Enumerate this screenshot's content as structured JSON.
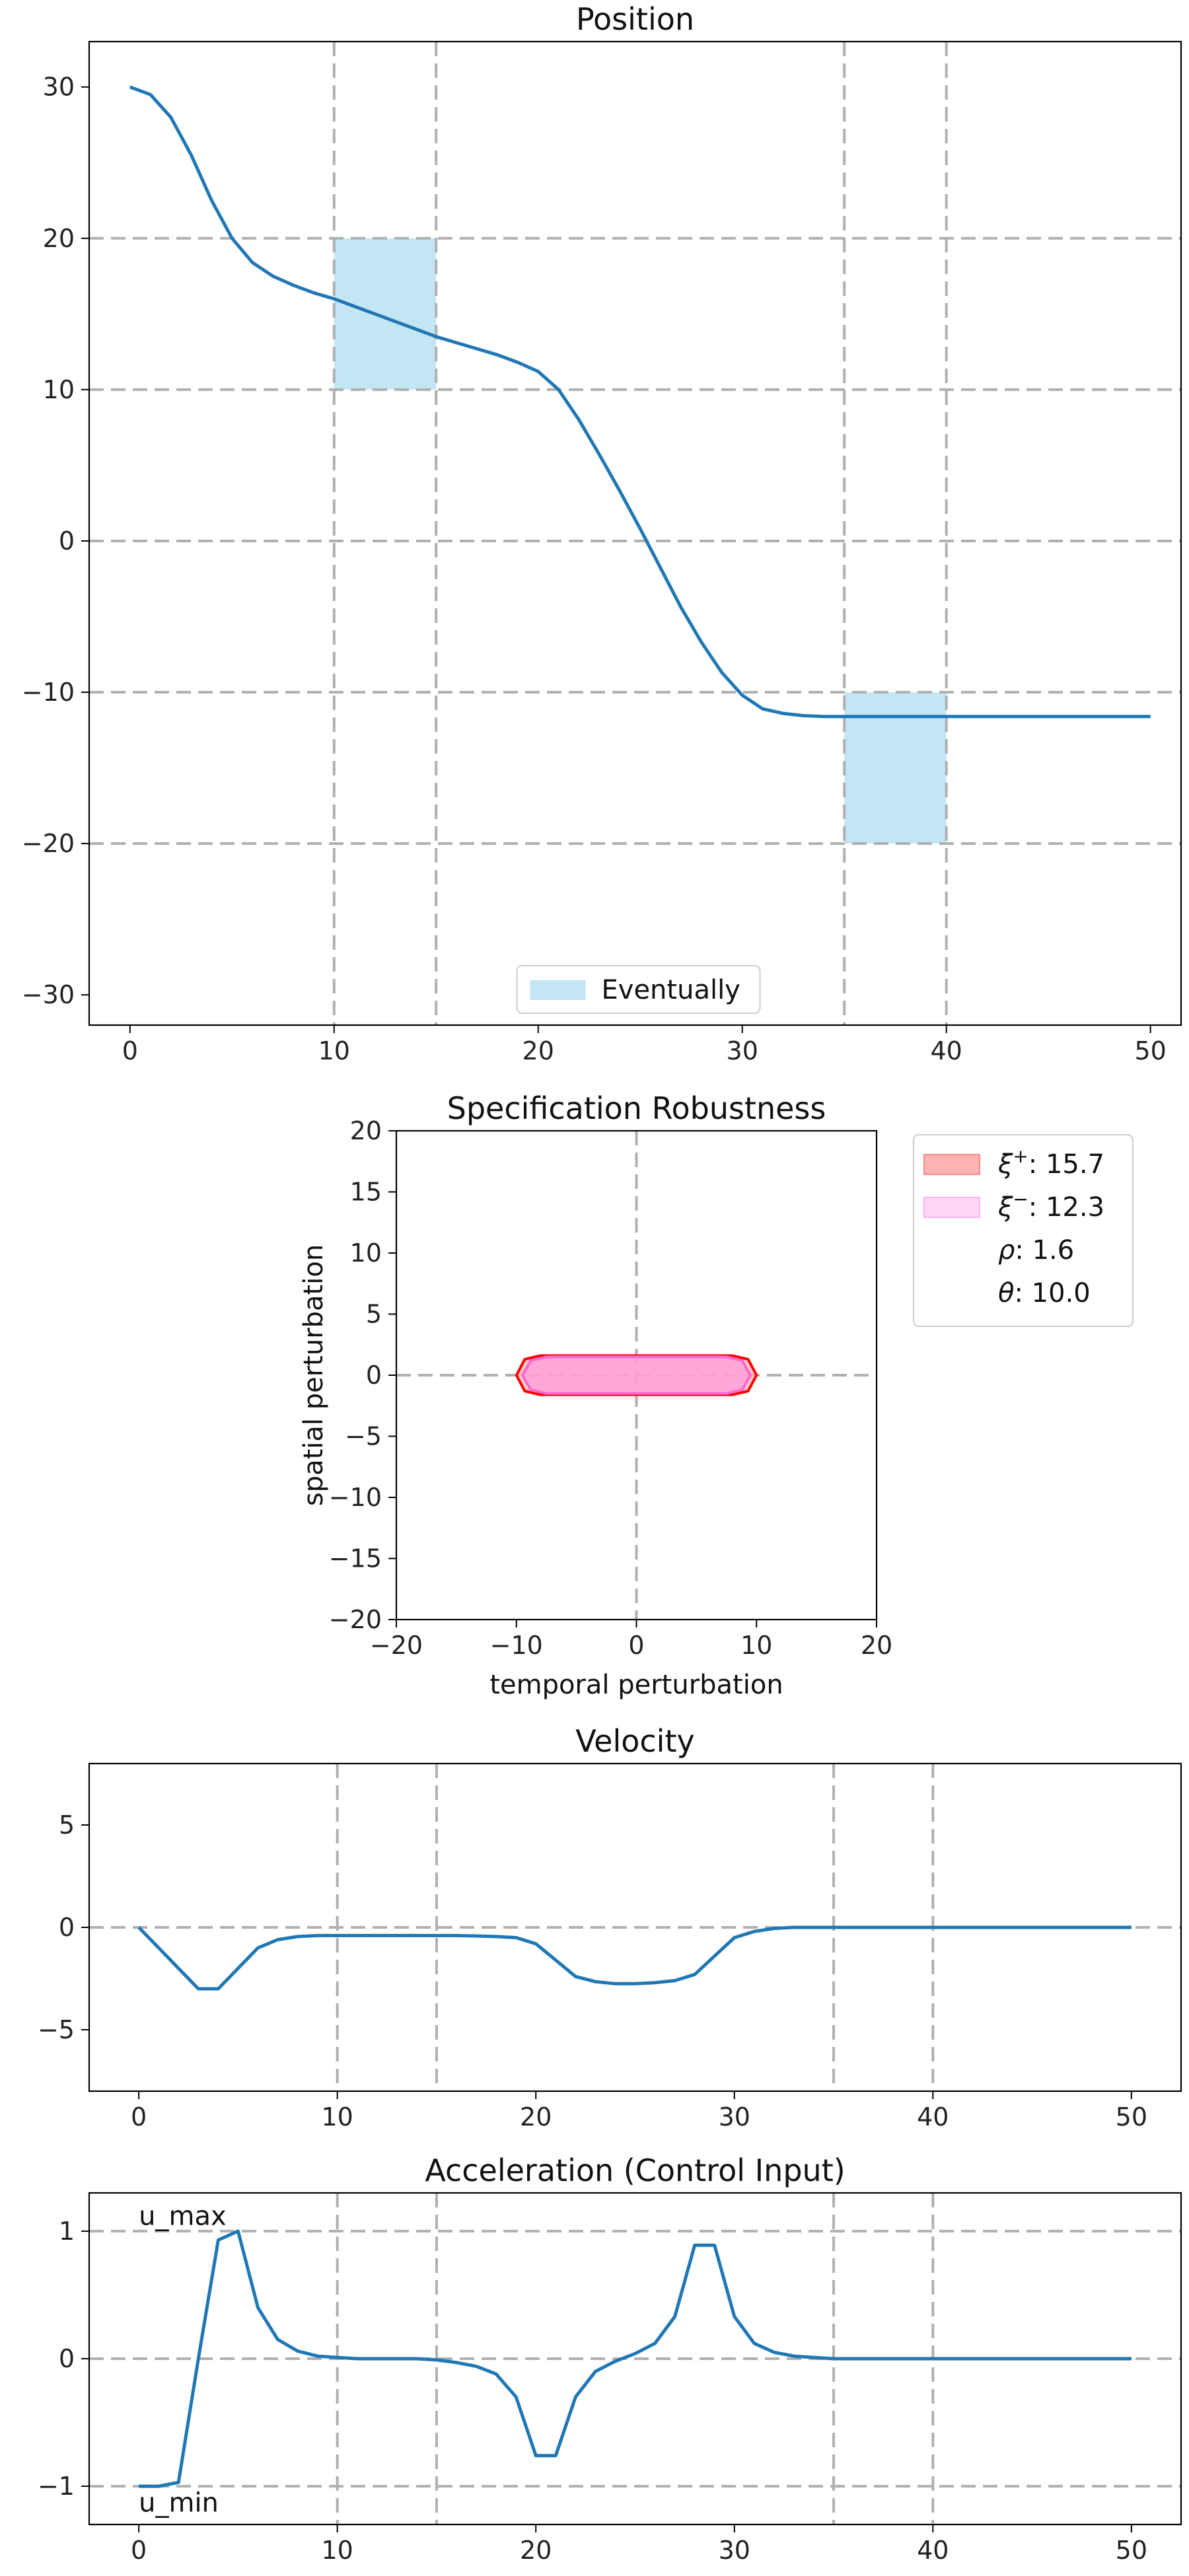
{
  "chart_data": [
    {
      "type": "line",
      "title": "Position",
      "xlim": [
        -2,
        51.5
      ],
      "ylim": [
        -32,
        33
      ],
      "xticks": [
        0,
        10,
        20,
        30,
        40,
        50
      ],
      "yticks": [
        -30,
        -20,
        -10,
        0,
        10,
        20,
        30
      ],
      "xtick_labels": [
        "0",
        "10",
        "20",
        "30",
        "40",
        "50"
      ],
      "ytick_labels": [
        "−30",
        "−20",
        "−10",
        "0",
        "10",
        "20",
        "30"
      ],
      "grid_y": [
        -20,
        -10,
        0,
        10,
        20
      ],
      "vlines": [
        10,
        15,
        35,
        40
      ],
      "regions": [
        {
          "x": [
            10,
            15
          ],
          "y": [
            10,
            20
          ],
          "color": "#87ceeb"
        },
        {
          "x": [
            35,
            40
          ],
          "y": [
            -20,
            -10
          ],
          "color": "#87ceeb"
        }
      ],
      "legend": {
        "placement": "lower-center",
        "entries": [
          {
            "label": "Eventually",
            "color": "#87ceeb"
          }
        ]
      },
      "series": [
        {
          "color": "#1f77b4",
          "x": [
            0,
            1,
            2,
            3,
            4,
            5,
            6,
            7,
            8,
            9,
            10,
            11,
            12,
            13,
            14,
            15,
            16,
            17,
            18,
            19,
            20,
            21,
            22,
            23,
            24,
            25,
            26,
            27,
            28,
            29,
            30,
            31,
            32,
            33,
            34,
            35,
            36,
            37,
            38,
            39,
            40,
            41,
            42,
            43,
            44,
            45,
            46,
            47,
            48,
            49,
            50
          ],
          "y": [
            30,
            29.5,
            28,
            25.5,
            22.5,
            20,
            18.4,
            17.5,
            16.9,
            16.4,
            16,
            15.5,
            15,
            14.5,
            14,
            13.5,
            13.1,
            12.7,
            12.3,
            11.8,
            11.2,
            10,
            8,
            5.7,
            3.3,
            0.8,
            -1.8,
            -4.4,
            -6.7,
            -8.7,
            -10.2,
            -11.1,
            -11.4,
            -11.55,
            -11.6,
            -11.6,
            -11.6,
            -11.6,
            -11.6,
            -11.6,
            -11.6,
            -11.6,
            -11.6,
            -11.6,
            -11.6,
            -11.6,
            -11.6,
            -11.6,
            -11.6,
            -11.6,
            -11.6
          ]
        }
      ]
    },
    {
      "type": "area",
      "title": "Specification Robustness",
      "xlabel": "temporal perturbation",
      "ylabel": "spatial perturbation",
      "xlim": [
        -20,
        20
      ],
      "ylim": [
        -20,
        20
      ],
      "xticks": [
        -20,
        -10,
        0,
        10,
        20
      ],
      "yticks": [
        -20,
        -15,
        -10,
        -5,
        0,
        5,
        10,
        15,
        20
      ],
      "xtick_labels": [
        "−20",
        "−10",
        "0",
        "10",
        "20"
      ],
      "ytick_labels": [
        "−20",
        "−15",
        "−10",
        "−5",
        "0",
        "5",
        "10",
        "15",
        "20"
      ],
      "polygons": [
        {
          "name": "xi_plus",
          "fill": "#ffb3b3",
          "edge": "#ff0000",
          "points": [
            [
              -10,
              0
            ],
            [
              -9.3,
              1.3
            ],
            [
              -8,
              1.6
            ],
            [
              8,
              1.6
            ],
            [
              9.3,
              1.3
            ],
            [
              10,
              0
            ],
            [
              9.3,
              -1.3
            ],
            [
              8,
              -1.6
            ],
            [
              -8,
              -1.6
            ],
            [
              -9.3,
              -1.3
            ]
          ]
        },
        {
          "name": "xi_minus",
          "fill": "#ff99dd",
          "edge": "#ff66cc",
          "points": [
            [
              -9.5,
              0
            ],
            [
              -8.8,
              1.2
            ],
            [
              -7.5,
              1.5
            ],
            [
              7.5,
              1.5
            ],
            [
              8.8,
              1.2
            ],
            [
              9.5,
              0
            ],
            [
              8.8,
              -1.2
            ],
            [
              7.5,
              -1.5
            ],
            [
              -7.5,
              -1.5
            ],
            [
              -8.8,
              -1.2
            ]
          ]
        }
      ],
      "legend": {
        "placement": "outside-right",
        "entries": [
          {
            "symbol": "ξ",
            "sup": "+",
            "value": ": 15.7",
            "color": "#ffb3b3",
            "edge": "#ff8888"
          },
          {
            "symbol": "ξ",
            "sup": "−",
            "value": ": 12.3",
            "color": "#ffd6f5",
            "edge": "#ffb3ec"
          },
          {
            "symbol": "ρ",
            "sup": "",
            "value": ": 1.6",
            "color": ""
          },
          {
            "symbol": "θ",
            "sup": "",
            "value": ": 10.0",
            "color": ""
          }
        ]
      }
    },
    {
      "type": "line",
      "title": "Velocity",
      "xlim": [
        -2.5,
        52.5
      ],
      "ylim": [
        -8,
        8
      ],
      "xticks": [
        0,
        10,
        20,
        30,
        40,
        50
      ],
      "yticks": [
        -5,
        0,
        5
      ],
      "xtick_labels": [
        "0",
        "10",
        "20",
        "30",
        "40",
        "50"
      ],
      "ytick_labels": [
        "−5",
        "0",
        "5"
      ],
      "grid_y": [
        0
      ],
      "vlines": [
        10,
        15,
        35,
        40
      ],
      "series": [
        {
          "color": "#1f77b4",
          "x": [
            0,
            1,
            2,
            3,
            4,
            5,
            6,
            7,
            8,
            9,
            10,
            11,
            12,
            13,
            14,
            15,
            16,
            17,
            18,
            19,
            20,
            21,
            22,
            23,
            24,
            25,
            26,
            27,
            28,
            29,
            30,
            31,
            32,
            33,
            34,
            35,
            36,
            37,
            38,
            39,
            40,
            41,
            42,
            43,
            44,
            45,
            46,
            47,
            48,
            49,
            50
          ],
          "y": [
            0,
            -1,
            -2,
            -3,
            -3,
            -2,
            -1,
            -0.6,
            -0.45,
            -0.4,
            -0.4,
            -0.4,
            -0.4,
            -0.4,
            -0.4,
            -0.4,
            -0.4,
            -0.42,
            -0.45,
            -0.5,
            -0.8,
            -1.6,
            -2.4,
            -2.65,
            -2.75,
            -2.75,
            -2.7,
            -2.6,
            -2.3,
            -1.4,
            -0.5,
            -0.2,
            -0.05,
            0,
            0,
            0,
            0,
            0,
            0,
            0,
            0,
            0,
            0,
            0,
            0,
            0,
            0,
            0,
            0,
            0,
            0
          ]
        }
      ]
    },
    {
      "type": "line",
      "title": "Acceleration (Control Input)",
      "xlim": [
        -2.5,
        52.5
      ],
      "ylim": [
        -1.3,
        1.3
      ],
      "xticks": [
        0,
        10,
        20,
        30,
        40,
        50
      ],
      "yticks": [
        -1,
        0,
        1
      ],
      "xtick_labels": [
        "0",
        "10",
        "20",
        "30",
        "40",
        "50"
      ],
      "ytick_labels": [
        "−1",
        "0",
        "1"
      ],
      "grid_y": [
        -1,
        0,
        1
      ],
      "vlines": [
        10,
        15,
        35,
        40
      ],
      "annotations": [
        {
          "text": "u_max",
          "x": 0,
          "y": 1.05
        },
        {
          "text": "u_min",
          "x": 0,
          "y": -1.2
        }
      ],
      "series": [
        {
          "color": "#1f77b4",
          "x": [
            0,
            1,
            2,
            3,
            4,
            5,
            6,
            7,
            8,
            9,
            10,
            11,
            12,
            13,
            14,
            15,
            16,
            17,
            18,
            19,
            20,
            21,
            22,
            23,
            24,
            25,
            26,
            27,
            28,
            29,
            30,
            31,
            32,
            33,
            34,
            35,
            36,
            37,
            38,
            39,
            40,
            41,
            42,
            43,
            44,
            45,
            46,
            47,
            48,
            49,
            50
          ],
          "y": [
            -1,
            -1,
            -0.97,
            0,
            0.93,
            1,
            0.4,
            0.15,
            0.06,
            0.02,
            0.01,
            0,
            0,
            0,
            0,
            -0.01,
            -0.03,
            -0.06,
            -0.12,
            -0.3,
            -0.76,
            -0.76,
            -0.3,
            -0.1,
            -0.02,
            0.04,
            0.12,
            0.33,
            0.89,
            0.89,
            0.33,
            0.12,
            0.05,
            0.02,
            0.01,
            0,
            0,
            0,
            0,
            0,
            0,
            0,
            0,
            0,
            0,
            0,
            0,
            0,
            0,
            0,
            0
          ]
        }
      ]
    }
  ]
}
